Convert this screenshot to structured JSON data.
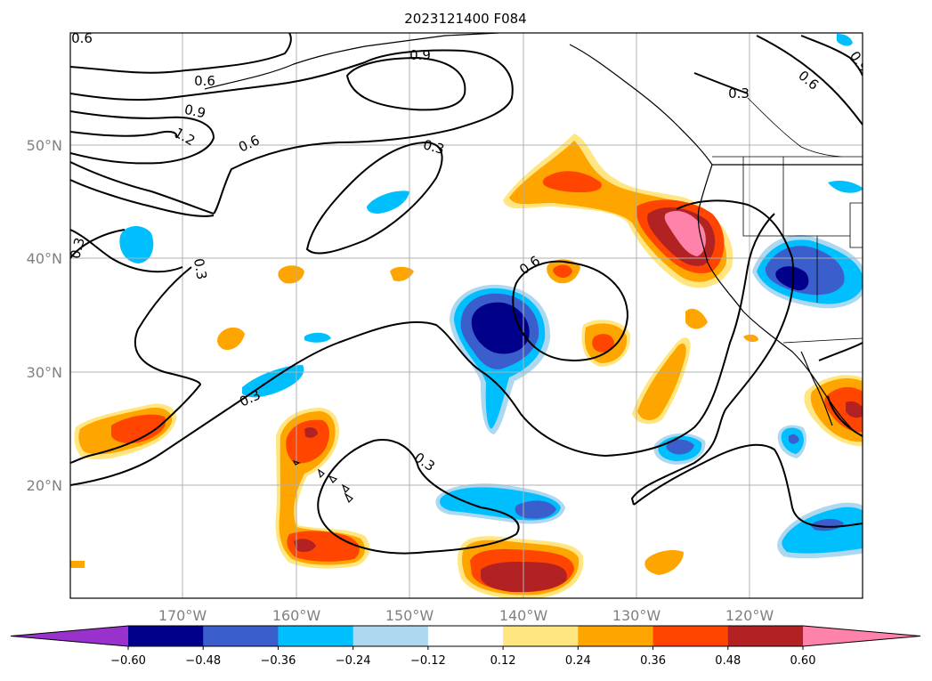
{
  "title": "2023121400 F084",
  "lat_labels": [
    "50°N",
    "40°N",
    "30°N",
    "20°N"
  ],
  "lon_labels": [
    "170°W",
    "160°W",
    "150°W",
    "140°W",
    "130°W",
    "120°W"
  ],
  "colorbar": {
    "levels": [
      "−0.60",
      "−0.48",
      "−0.36",
      "−0.24",
      "−0.12",
      "0.12",
      "0.24",
      "0.36",
      "0.48",
      "0.60"
    ],
    "colors": [
      "#9932cc",
      "#00008b",
      "#3a5fcd",
      "#00bfff",
      "#add8f0",
      "#ffffff",
      "#ffe680",
      "#ffa500",
      "#ff4500",
      "#b22222",
      "#ff82ab"
    ],
    "extend": "both"
  },
  "contour_labels": [
    "0.6",
    "0.9",
    "0.6",
    "0.9",
    "1.2",
    "0.6",
    "0.3",
    "0.3",
    "0.3",
    "0.6",
    "0.3",
    "0.3",
    "0.3",
    "0.6",
    "0.9"
  ],
  "colors": {
    "dark_blue": "#00008b",
    "blue": "#3a5fcd",
    "deep_sky": "#00bfff",
    "light_blue": "#add8f0",
    "yellow": "#ffe680",
    "orange": "#ffa500",
    "red_orange": "#ff4500",
    "firebrick": "#b22222",
    "pink": "#ff82ab",
    "purple": "#9932cc"
  }
}
